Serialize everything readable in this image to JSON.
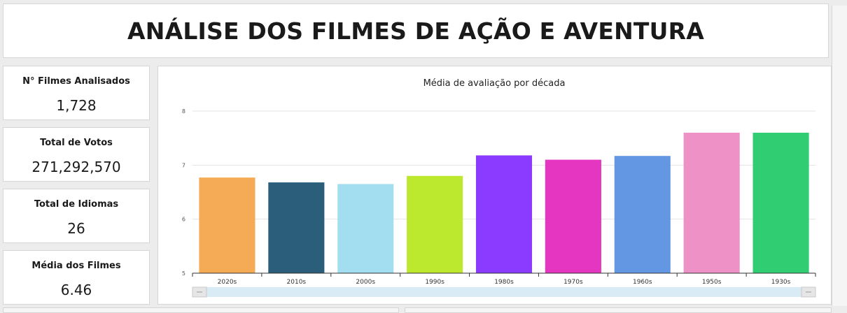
{
  "header": {
    "title": "ANÁLISE DOS FILMES DE AÇÃO E AVENTURA"
  },
  "kpis": [
    {
      "label": "N° Filmes Analisados",
      "value": "1,728"
    },
    {
      "label": "Total de Votos",
      "value": "271,292,570"
    },
    {
      "label": "Total de Idiomas",
      "value": "26"
    },
    {
      "label": "Média dos Filmes",
      "value": "6.46"
    }
  ],
  "chart_data": {
    "type": "bar",
    "title": "Média de avaliação por década",
    "xlabel": "",
    "ylabel": "",
    "categories": [
      "2020s",
      "2010s",
      "2000s",
      "1990s",
      "1980s",
      "1970s",
      "1960s",
      "1950s",
      "1930s"
    ],
    "values": [
      6.77,
      6.68,
      6.65,
      6.8,
      7.18,
      7.1,
      7.17,
      7.6,
      7.6
    ],
    "colors": [
      "#f5aa55",
      "#2a5e7a",
      "#a2def0",
      "#bce82e",
      "#8a3bff",
      "#e436c0",
      "#6497e3",
      "#ee91c7",
      "#30cd73"
    ],
    "ylim": [
      5,
      8
    ],
    "yticks": [
      5,
      6,
      7,
      8
    ],
    "grid": true,
    "legend": "none",
    "scrollbar": true
  }
}
